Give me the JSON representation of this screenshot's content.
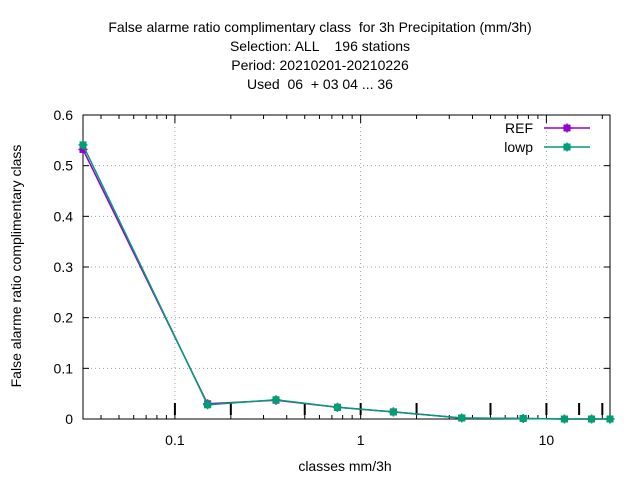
{
  "title_lines": [
    "False alarme ratio complimentary class  for 3h Precipitation (mm/3h)",
    "Selection: ALL    196 stations",
    "Period: 20210201-20210226",
    "Used  06  + 03 04 ... 36"
  ],
  "chart_data": {
    "type": "line",
    "title": "False alarme ratio complimentary class  for 3h Precipitation (mm/3h)",
    "xlabel": "classes mm/3h",
    "ylabel": "False alarme ratio complimentary class",
    "xscale": "log",
    "xlim": [
      0.032,
      22
    ],
    "ylim": [
      0,
      0.6
    ],
    "x_ticks": [
      0.1,
      1,
      10
    ],
    "x_tick_labels": [
      "0.1",
      "1",
      "10"
    ],
    "y_ticks": [
      0,
      0.1,
      0.2,
      0.3,
      0.4,
      0.5,
      0.6
    ],
    "y_tick_labels": [
      "0",
      "0.1",
      "0.2",
      "0.3",
      "0.4",
      "0.5",
      "0.6"
    ],
    "class_thresholds": [
      0.1,
      0.2,
      0.5,
      1,
      2,
      5,
      10,
      15,
      20
    ],
    "grid": true,
    "legend_position": "top-right",
    "series": [
      {
        "name": "REF",
        "color": "#9400d3",
        "x": [
          0.032,
          0.15,
          0.35,
          0.75,
          1.5,
          3.5,
          7.5,
          12.5,
          17.5,
          22
        ],
        "values": [
          0.532,
          0.03,
          0.037,
          0.023,
          0.014,
          0.002,
          0.001,
          0.0,
          0.0,
          0.0
        ]
      },
      {
        "name": "lowp",
        "color": "#009e73",
        "x": [
          0.032,
          0.15,
          0.35,
          0.75,
          1.5,
          3.5,
          7.5,
          12.5,
          17.5,
          22
        ],
        "values": [
          0.541,
          0.028,
          0.038,
          0.023,
          0.014,
          0.002,
          0.001,
          0.0,
          0.0,
          0.0
        ]
      }
    ]
  }
}
